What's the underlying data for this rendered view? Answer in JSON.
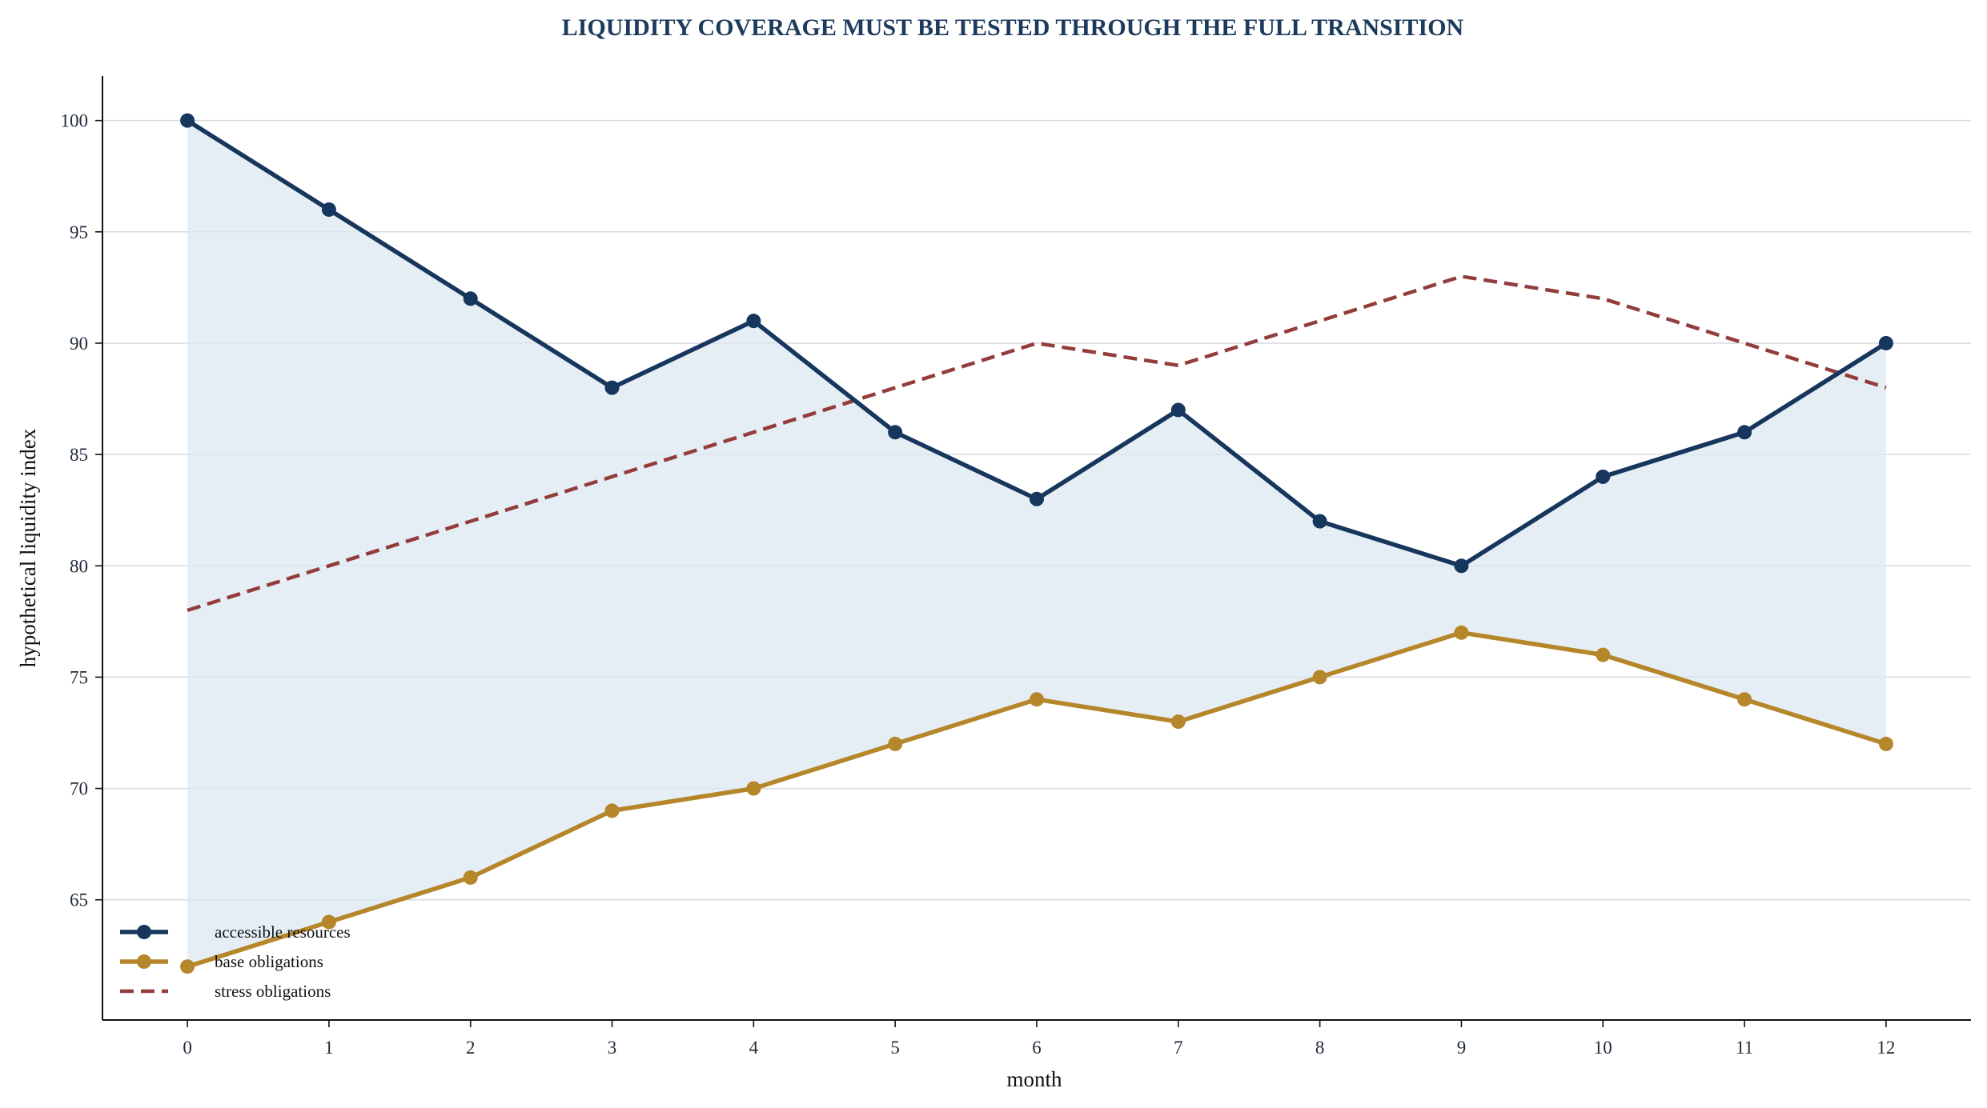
{
  "chart_data": {
    "type": "line",
    "title": "LIQUIDITY COVERAGE MUST BE TESTED THROUGH THE FULL TRANSITION",
    "xlabel": "month",
    "ylabel": "hypothetical liquidity index",
    "x": [
      0,
      1,
      2,
      3,
      4,
      5,
      6,
      7,
      8,
      9,
      10,
      11,
      12
    ],
    "x_tick_labels": [
      "0",
      "1",
      "2",
      "3",
      "4",
      "5",
      "6",
      "7",
      "8",
      "9",
      "10",
      "11",
      "12"
    ],
    "y_ticks": [
      65,
      70,
      75,
      80,
      85,
      90,
      95,
      100
    ],
    "y_tick_labels": [
      "65",
      "70",
      "75",
      "80",
      "85",
      "90",
      "95",
      "100"
    ],
    "xlim": [
      -0.6,
      12.6
    ],
    "ylim": [
      59.6,
      102
    ],
    "grid": "horizontal",
    "legend_position": "lower-left",
    "series": [
      {
        "name": "accessible resources",
        "values": [
          100,
          96,
          92,
          88,
          91,
          86,
          83,
          87,
          82,
          80,
          84,
          86,
          90
        ],
        "color": "#17365d",
        "style": "solid",
        "markers": true
      },
      {
        "name": "base obligations",
        "values": [
          62,
          64,
          66,
          69,
          70,
          72,
          74,
          73,
          75,
          77,
          76,
          74,
          72
        ],
        "color": "#b5862a",
        "style": "solid",
        "markers": true
      },
      {
        "name": "stress obligations",
        "values": [
          78,
          80,
          82,
          84,
          86,
          88,
          90,
          89,
          91,
          93,
          92,
          90,
          88
        ],
        "color": "#943c3c",
        "style": "dashed",
        "markers": false
      }
    ],
    "fill_between": {
      "upper": "accessible resources",
      "lower": "base obligations",
      "color": "#dce8f2"
    }
  }
}
